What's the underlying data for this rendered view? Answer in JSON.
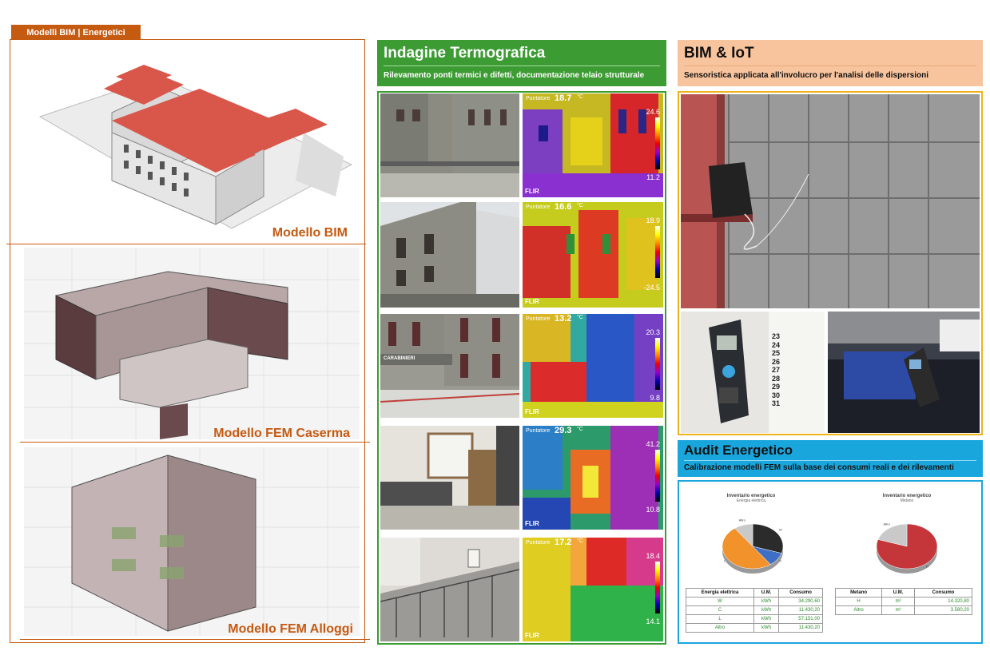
{
  "left": {
    "tag": "Modelli BIM | Energetici",
    "labels": [
      "Modello BIM",
      "Modello FEM Caserma",
      "Modello FEM Alloggi"
    ]
  },
  "termo": {
    "title": "Indagine Termografica",
    "subtitle": "Rilevamento ponti termici e difetti, documentazione telaio strutturale",
    "thermals": [
      {
        "label": "Puntatore",
        "temp": "18.7",
        "unit": "°C",
        "max": "24.6",
        "min": "11.2",
        "logo": "FLIR"
      },
      {
        "label": "Puntatore",
        "temp": "16.6",
        "unit": "°C",
        "max": "18.9",
        "min": "-24.5",
        "logo": "FLIR"
      },
      {
        "label": "Puntatore",
        "temp": "13.2",
        "unit": "°C",
        "max": "20.3",
        "min": "9.8",
        "logo": "FLIR"
      },
      {
        "label": "Puntatore",
        "temp": "29.3",
        "unit": "°C",
        "max": "41.2",
        "min": "10.8",
        "logo": "FLIR"
      },
      {
        "label": "Puntatore",
        "temp": "17.2",
        "unit": "°C",
        "max": "18.4",
        "min": "14.1",
        "logo": "FLIR"
      }
    ],
    "sign": "CARABINIERI"
  },
  "iot": {
    "title": "BIM & IoT",
    "subtitle": "Sensoristica applicata all'involucro per l'analisi delle dispersioni",
    "calendar": [
      "23",
      "24",
      "25",
      "26",
      "27",
      "28",
      "29",
      "30",
      "31"
    ]
  },
  "audit": {
    "title": "Audit Energetico",
    "subtitle": "Calibrazione modelli FEM sulla base dei consumi reali e dei rilevamenti",
    "charts": [
      {
        "title": "Inventario energetico",
        "sub": "Energia elettrica"
      },
      {
        "title": "Inventario energetico",
        "sub": "Metano"
      }
    ],
    "table1": {
      "headers": [
        "Energia elettrica",
        "U.M.",
        "Consumo"
      ],
      "rows": [
        [
          "W",
          "kWh",
          "34.290,60"
        ],
        [
          "C",
          "kWh",
          "11.430,20"
        ],
        [
          "L",
          "kWh",
          "57.151,00"
        ],
        [
          "Altro",
          "kWh",
          "11.430,20"
        ]
      ]
    },
    "table2": {
      "headers": [
        "Metano",
        "U.M.",
        "Consumo"
      ],
      "rows": [
        [
          "H",
          "m³",
          "14.320,80"
        ],
        [
          "Altro",
          "m³",
          "3.580,20"
        ]
      ]
    }
  },
  "chart_data": [
    {
      "type": "pie",
      "title": "Inventario energetico",
      "subtitle": "Energia elettrica",
      "categories": [
        "W",
        "C",
        "L",
        "Altro"
      ],
      "values": [
        34290.6,
        11430.2,
        57151.0,
        11430.2
      ],
      "colors": [
        "#2b2b2b",
        "#3f6fc4",
        "#f2922b",
        "#c9c9c9"
      ]
    },
    {
      "type": "pie",
      "title": "Inventario energetico",
      "subtitle": "Metano",
      "categories": [
        "H",
        "Altro"
      ],
      "values": [
        14320.8,
        3580.2
      ],
      "colors": [
        "#c4363a",
        "#c9c9c9"
      ]
    }
  ]
}
